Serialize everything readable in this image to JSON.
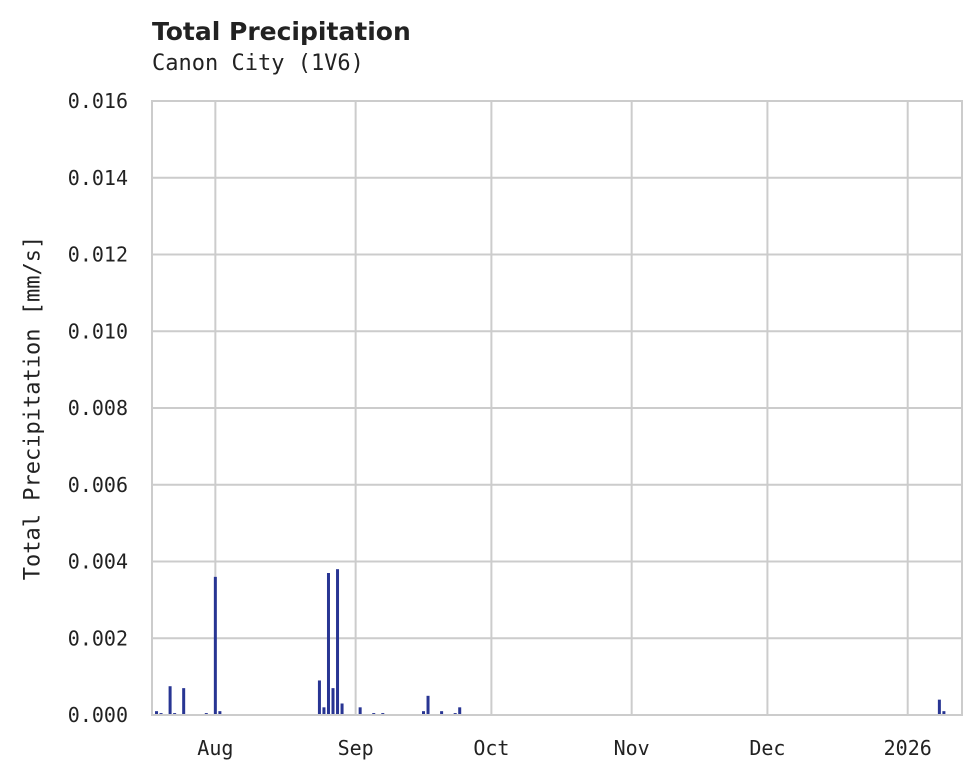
{
  "title": "Total Precipitation",
  "subtitle": "Canon City (1V6)",
  "colors": {
    "series": "#283593",
    "grid": "#cccccc",
    "axes": "#cccccc"
  },
  "chart_data": {
    "type": "bar",
    "title": "Total Precipitation",
    "subtitle": "Canon City (1V6)",
    "xlabel": "",
    "ylabel": "Total Precipitation [mm/s]",
    "ylim": [
      0,
      0.016
    ],
    "yticks": [
      "0.000",
      "0.002",
      "0.004",
      "0.006",
      "0.008",
      "0.010",
      "0.012",
      "0.014",
      "0.016"
    ],
    "xticks": [
      "Aug",
      "Sep",
      "Oct",
      "Nov",
      "Dec",
      "2026"
    ],
    "grid": true,
    "legend": null,
    "series": [
      {
        "name": "Total Precipitation",
        "points": [
          {
            "date": "2025-07-19",
            "value": 0.0001
          },
          {
            "date": "2025-07-20",
            "value": 5e-05
          },
          {
            "date": "2025-07-22",
            "value": 0.00075
          },
          {
            "date": "2025-07-23",
            "value": 5e-05
          },
          {
            "date": "2025-07-25",
            "value": 0.0007
          },
          {
            "date": "2025-07-30",
            "value": 5e-05
          },
          {
            "date": "2025-08-01",
            "value": 0.0036
          },
          {
            "date": "2025-08-02",
            "value": 0.0001
          },
          {
            "date": "2025-08-24",
            "value": 0.0009
          },
          {
            "date": "2025-08-25",
            "value": 0.0002
          },
          {
            "date": "2025-08-26",
            "value": 0.0037
          },
          {
            "date": "2025-08-27",
            "value": 0.0007
          },
          {
            "date": "2025-08-28",
            "value": 0.0038
          },
          {
            "date": "2025-08-29",
            "value": 0.0003
          },
          {
            "date": "2025-09-02",
            "value": 0.0002
          },
          {
            "date": "2025-09-05",
            "value": 5e-05
          },
          {
            "date": "2025-09-07",
            "value": 5e-05
          },
          {
            "date": "2025-09-16",
            "value": 0.0001
          },
          {
            "date": "2025-09-17",
            "value": 0.0005
          },
          {
            "date": "2025-09-20",
            "value": 0.0001
          },
          {
            "date": "2025-09-23",
            "value": 5e-05
          },
          {
            "date": "2025-09-24",
            "value": 0.0002
          },
          {
            "date": "2026-01-08",
            "value": 0.0004
          },
          {
            "date": "2026-01-09",
            "value": 0.0001
          }
        ]
      }
    ]
  }
}
